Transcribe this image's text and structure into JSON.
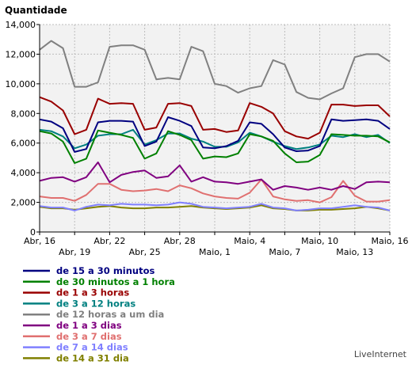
{
  "chart_data": {
    "type": "line",
    "ylabel": "Quantidade",
    "ylim": [
      0,
      14000
    ],
    "yticks": [
      0,
      2000,
      4000,
      6000,
      8000,
      10000,
      12000,
      14000
    ],
    "ytick_labels": [
      "0",
      "2,000",
      "4,000",
      "6,000",
      "8,000",
      "10,000",
      "12,000",
      "14,000"
    ],
    "x": [
      "Abr, 16",
      "Abr, 17",
      "Abr, 18",
      "Abr, 19",
      "Abr, 20",
      "Abr, 21",
      "Abr, 22",
      "Abr, 23",
      "Abr, 24",
      "Abr, 25",
      "Abr, 26",
      "Abr, 27",
      "Abr, 28",
      "Abr, 29",
      "Abr, 30",
      "Maio, 1",
      "Maio, 2",
      "Maio, 3",
      "Maio, 4",
      "Maio, 5",
      "Maio, 6",
      "Maio, 7",
      "Maio, 8",
      "Maio, 9",
      "Maio, 10",
      "Maio, 11",
      "Maio, 12",
      "Maio, 13",
      "Maio, 14",
      "Maio, 15",
      "Maio, 16"
    ],
    "xtick_labels": [
      {
        "index": 0,
        "label": "Abr, 16",
        "row": 1
      },
      {
        "index": 3,
        "label": "Abr, 19",
        "row": 2
      },
      {
        "index": 6,
        "label": "Abr, 22",
        "row": 1
      },
      {
        "index": 9,
        "label": "Abr, 25",
        "row": 2
      },
      {
        "index": 12,
        "label": "Abr, 28",
        "row": 1
      },
      {
        "index": 15,
        "label": "Maio, 1",
        "row": 2
      },
      {
        "index": 18,
        "label": "Maio, 4",
        "row": 1
      },
      {
        "index": 21,
        "label": "Maio, 7",
        "row": 2
      },
      {
        "index": 24,
        "label": "Maio, 10",
        "row": 1
      },
      {
        "index": 27,
        "label": "Maio, 13",
        "row": 2
      },
      {
        "index": 30,
        "label": "Maio, 16",
        "row": 1
      }
    ],
    "grid": true,
    "legend_position": "bottom-left",
    "series": [
      {
        "name": "de 15 a 30 minutos",
        "color": "#000080",
        "values": [
          7600,
          7450,
          7000,
          5400,
          5600,
          7400,
          7500,
          7500,
          7450,
          5800,
          6100,
          7750,
          7500,
          7150,
          5700,
          5650,
          5800,
          6150,
          7400,
          7300,
          6600,
          5700,
          5450,
          5500,
          5800,
          7600,
          7500,
          7550,
          7600,
          7500,
          6950
        ]
      },
      {
        "name": "de 30 minutos a 1 hora",
        "color": "#008000",
        "values": [
          6800,
          6650,
          6100,
          4650,
          4950,
          6850,
          6700,
          6550,
          6350,
          4950,
          5300,
          6800,
          6550,
          6200,
          4950,
          5100,
          5050,
          5300,
          6600,
          6450,
          6150,
          5300,
          4700,
          4750,
          5200,
          6600,
          6550,
          6500,
          6500,
          6450,
          6050
        ]
      },
      {
        "name": "de 1 a 3 horas",
        "color": "#990000",
        "values": [
          9100,
          8800,
          8200,
          6600,
          6900,
          9000,
          8650,
          8700,
          8650,
          6900,
          7050,
          8650,
          8700,
          8500,
          6900,
          6950,
          6750,
          6850,
          8700,
          8450,
          8000,
          6800,
          6450,
          6300,
          6700,
          8600,
          8600,
          8500,
          8550,
          8550,
          7800
        ]
      },
      {
        "name": "de 3 a 12 horas",
        "color": "#008080",
        "values": [
          6900,
          6800,
          6450,
          5650,
          5900,
          6500,
          6600,
          6600,
          6900,
          5900,
          6200,
          6650,
          6650,
          6300,
          6100,
          5750,
          5750,
          6050,
          6700,
          6450,
          6100,
          5800,
          5600,
          5700,
          5900,
          6500,
          6400,
          6600,
          6400,
          6550,
          6000
        ]
      },
      {
        "name": "de 12 horas a um dia",
        "color": "#808080",
        "values": [
          12300,
          12900,
          12400,
          9800,
          9800,
          10100,
          12500,
          12600,
          12600,
          12300,
          10300,
          10400,
          10300,
          12500,
          12200,
          10000,
          9850,
          9400,
          9700,
          9850,
          11600,
          11300,
          9450,
          9050,
          8950,
          9350,
          9700,
          11800,
          12000,
          12000,
          11500
        ]
      },
      {
        "name": "de 1 a 3 dias",
        "color": "#800080",
        "values": [
          3450,
          3650,
          3700,
          3400,
          3700,
          4700,
          3350,
          3850,
          4050,
          4150,
          3650,
          3750,
          4500,
          3400,
          3700,
          3400,
          3350,
          3250,
          3400,
          3550,
          2850,
          3100,
          3000,
          2850,
          3000,
          2850,
          3100,
          2900,
          3350,
          3400,
          3350
        ]
      },
      {
        "name": "de 3 a 7 dias",
        "color": "#e07070",
        "values": [
          2400,
          2300,
          2300,
          2100,
          2500,
          3250,
          3250,
          2850,
          2750,
          2800,
          2900,
          2750,
          3150,
          2950,
          2600,
          2400,
          2300,
          2250,
          2650,
          3550,
          2400,
          2200,
          2100,
          2150,
          2000,
          2350,
          3450,
          2450,
          2050,
          2050,
          2150
        ]
      },
      {
        "name": "de 7 a 14 dias",
        "color": "#8080ff",
        "values": [
          1750,
          1650,
          1650,
          1450,
          1700,
          1850,
          1800,
          1900,
          1850,
          1850,
          1800,
          1850,
          2000,
          1900,
          1700,
          1650,
          1600,
          1650,
          1700,
          1900,
          1650,
          1600,
          1450,
          1500,
          1600,
          1600,
          1700,
          1800,
          1700,
          1650,
          1450
        ]
      },
      {
        "name": "de 14 a 31 dia",
        "color": "#808000",
        "values": [
          1700,
          1600,
          1600,
          1500,
          1600,
          1700,
          1750,
          1650,
          1600,
          1600,
          1650,
          1650,
          1700,
          1750,
          1650,
          1600,
          1550,
          1600,
          1650,
          1800,
          1600,
          1550,
          1450,
          1450,
          1500,
          1500,
          1550,
          1600,
          1700,
          1600,
          1450
        ]
      }
    ]
  },
  "credit": "LiveInternet"
}
